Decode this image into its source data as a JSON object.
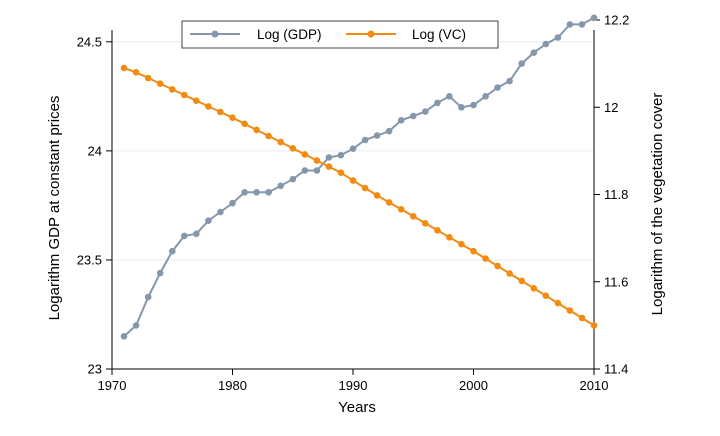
{
  "chart_data": {
    "type": "line",
    "title": "",
    "xlabel": "Years",
    "ylabel_left": "Logarithm GDP at constant prices",
    "ylabel_right": "Logarithm of the vegetation cover",
    "xlim": [
      1970,
      2010
    ],
    "ylim_left": [
      23,
      24.6
    ],
    "ylim_right": [
      11.4,
      12.2
    ],
    "x_ticks": [
      1970,
      1980,
      1990,
      2000,
      2010
    ],
    "y_left_ticks": [
      "23",
      "23.5",
      "24",
      "24.5"
    ],
    "y_right_ticks": [
      "11.4",
      "11.6",
      "11.8",
      "12",
      "12.2"
    ],
    "grid": "horizontal",
    "legend_position": "top",
    "x": [
      1971,
      1972,
      1973,
      1974,
      1975,
      1976,
      1977,
      1978,
      1979,
      1980,
      1981,
      1982,
      1983,
      1984,
      1985,
      1986,
      1987,
      1988,
      1989,
      1990,
      1991,
      1992,
      1993,
      1994,
      1995,
      1996,
      1997,
      1998,
      1999,
      2000,
      2001,
      2002,
      2003,
      2004,
      2005,
      2006,
      2007,
      2008,
      2009,
      2010
    ],
    "series": [
      {
        "name": "Log (GDP)",
        "axis": "left",
        "color": "#8597ab",
        "values": [
          23.15,
          23.2,
          23.33,
          23.44,
          23.54,
          23.61,
          23.62,
          23.68,
          23.72,
          23.76,
          23.81,
          23.81,
          23.81,
          23.84,
          23.87,
          23.91,
          23.91,
          23.97,
          23.98,
          24.01,
          24.05,
          24.07,
          24.09,
          24.14,
          24.16,
          24.18,
          24.22,
          24.25,
          24.2,
          24.21,
          24.25,
          24.29,
          24.32,
          24.4,
          24.45,
          24.49,
          24.52,
          24.58,
          24.58,
          24.61
        ]
      },
      {
        "name": "Log (VC)",
        "axis": "right",
        "color": "#f28b12",
        "values": [
          12.09,
          12.08,
          12.067,
          12.054,
          12.041,
          12.028,
          12.015,
          12.002,
          11.989,
          11.976,
          11.962,
          11.948,
          11.934,
          11.92,
          11.906,
          11.892,
          11.878,
          11.864,
          11.85,
          11.832,
          11.815,
          11.798,
          11.782,
          11.766,
          11.75,
          11.734,
          11.718,
          11.702,
          11.686,
          11.67,
          11.653,
          11.636,
          11.619,
          11.602,
          11.585,
          11.568,
          11.551,
          11.534,
          11.517,
          11.5
        ]
      }
    ]
  }
}
